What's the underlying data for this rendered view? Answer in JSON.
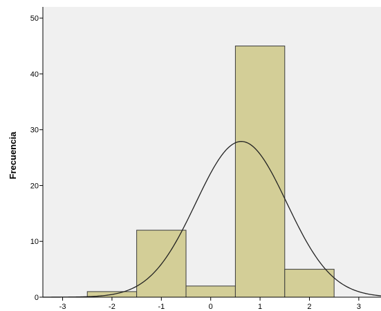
{
  "chart_data": {
    "type": "bar",
    "title": "",
    "xlabel": "",
    "ylabel": "Frecuencia",
    "colors": {
      "background": "#ffffff",
      "plot_area": "#f0f0f0",
      "bar_fill": "#d3ce97",
      "bar_stroke": "#3a3a3a",
      "curve": "#222222"
    },
    "xlim": [
      -3.4,
      3.45
    ],
    "ylim": [
      0,
      52
    ],
    "x_ticks": [
      -3,
      -2,
      -1,
      0,
      1,
      2,
      3
    ],
    "x_tick_labels": [
      "-3",
      "-2",
      "-1",
      "0",
      "1",
      "2",
      "3"
    ],
    "y_ticks": [
      0,
      10,
      20,
      30,
      40,
      50
    ],
    "y_tick_labels": [
      "0",
      "10",
      "20",
      "30",
      "40",
      "50"
    ],
    "bins": [
      {
        "x0": -2.5,
        "x1": -1.5,
        "value": 1
      },
      {
        "x0": -1.5,
        "x1": -0.5,
        "value": 12
      },
      {
        "x0": -0.5,
        "x1": 0.5,
        "value": 2
      },
      {
        "x0": 0.5,
        "x1": 1.5,
        "value": 45
      },
      {
        "x0": 1.5,
        "x1": 2.5,
        "value": 5
      }
    ],
    "normal_curve": {
      "mean": 0.62,
      "sd": 0.92,
      "peak": 27.9
    },
    "grid": false,
    "legend": "none"
  }
}
